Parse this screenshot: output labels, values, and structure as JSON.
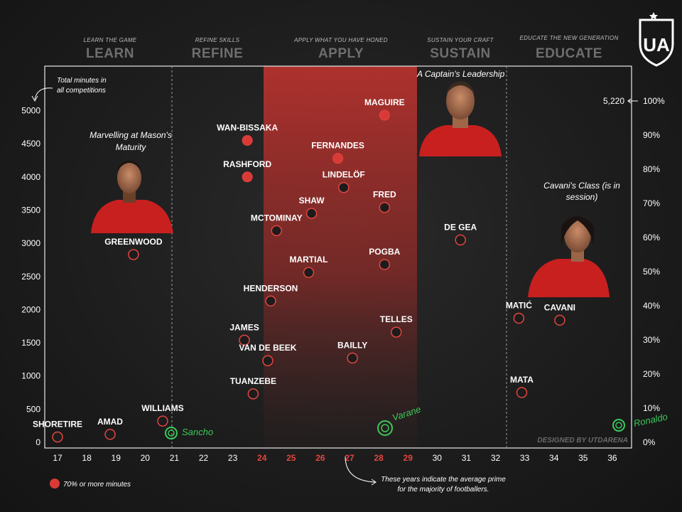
{
  "brand": {
    "logo_text": "UA",
    "credit": "DESIGNED BY UTDARENA"
  },
  "phases": [
    {
      "small": "LEARN THE GAME",
      "big": "LEARN"
    },
    {
      "small": "REFINE SKILLS",
      "big": "REFINE"
    },
    {
      "small": "APPLY WHAT YOU HAVE HONED",
      "big": "APPLY"
    },
    {
      "small": "SUSTAIN YOUR CRAFT",
      "big": "SUSTAIN"
    },
    {
      "small": "EDUCATE THE NEW GENERATION",
      "big": "EDUCATE"
    }
  ],
  "annotations": {
    "y_axis_note_line1": "Total minutes in",
    "y_axis_note_line2": "all competitions",
    "captain": "A Captain's Leadership",
    "mason_line1": "Marvelling at Mason's",
    "mason_line2": "Maturity",
    "cavani_line1": "Cavani's Class (is in",
    "cavani_line2": "session)",
    "prime_line1": "These years indicate the average prime",
    "prime_line2": "for the majority of footballers.",
    "max_minutes": "5,220",
    "legend": "70% or more minutes",
    "handwritten": [
      "Sancho",
      "Varane",
      "Ronaldo"
    ]
  },
  "colors": {
    "accent": "#e2453f",
    "apply_band": "#a8302c",
    "handwritten": "#3cc85a",
    "marker_fill": "#d93a36"
  },
  "chart_data": {
    "type": "scatter",
    "x_ticks": [
      17,
      18,
      19,
      20,
      21,
      22,
      23,
      24,
      25,
      26,
      27,
      28,
      29,
      30,
      31,
      32,
      33,
      34,
      35,
      36
    ],
    "x_highlight": [
      24,
      25,
      26,
      27,
      28,
      29
    ],
    "y_ticks": [
      0,
      500,
      1000,
      1500,
      2000,
      2500,
      3000,
      3500,
      4000,
      4500,
      5000
    ],
    "right_ticks": [
      "0%",
      "10%",
      "20%",
      "30%",
      "40%",
      "50%",
      "60%",
      "70%",
      "80%",
      "90%",
      "100%"
    ],
    "ylim": [
      0,
      5220
    ],
    "xlim": [
      16.6,
      36.4
    ],
    "points": [
      {
        "name": "SHORETIRE",
        "age": 17.0,
        "minutes": 80,
        "filled": false
      },
      {
        "name": "AMAD",
        "age": 18.8,
        "minutes": 120,
        "filled": false
      },
      {
        "name": "WILLIAMS",
        "age": 20.6,
        "minutes": 320,
        "filled": false
      },
      {
        "name": "GREENWOOD",
        "age": 19.6,
        "minutes": 2830,
        "filled": false
      },
      {
        "name": "WAN-BISSAKA",
        "age": 23.5,
        "minutes": 4550,
        "filled": true
      },
      {
        "name": "RASHFORD",
        "age": 23.5,
        "minutes": 4000,
        "filled": true
      },
      {
        "name": "MCTOMINAY",
        "age": 24.5,
        "minutes": 3190,
        "filled": false
      },
      {
        "name": "HENDERSON",
        "age": 24.3,
        "minutes": 2130,
        "filled": false
      },
      {
        "name": "JAMES",
        "age": 23.4,
        "minutes": 1540,
        "filled": false
      },
      {
        "name": "VAN DE BEEK",
        "age": 24.2,
        "minutes": 1230,
        "filled": false
      },
      {
        "name": "TUANZEBE",
        "age": 23.7,
        "minutes": 730,
        "filled": false
      },
      {
        "name": "SHAW",
        "age": 25.7,
        "minutes": 3450,
        "filled": false
      },
      {
        "name": "MARTIAL",
        "age": 25.6,
        "minutes": 2560,
        "filled": false
      },
      {
        "name": "FERNANDES",
        "age": 26.6,
        "minutes": 4280,
        "filled": true
      },
      {
        "name": "LINDELÖF",
        "age": 26.8,
        "minutes": 3840,
        "filled": false
      },
      {
        "name": "MAGUIRE",
        "age": 28.2,
        "minutes": 4930,
        "filled": true
      },
      {
        "name": "FRED",
        "age": 28.2,
        "minutes": 3540,
        "filled": false
      },
      {
        "name": "POGBA",
        "age": 28.2,
        "minutes": 2680,
        "filled": false
      },
      {
        "name": "BAILLY",
        "age": 27.1,
        "minutes": 1270,
        "filled": false
      },
      {
        "name": "TELLES",
        "age": 28.6,
        "minutes": 1660,
        "filled": false
      },
      {
        "name": "DE GEA",
        "age": 30.8,
        "minutes": 3050,
        "filled": false
      },
      {
        "name": "MATIĆ",
        "age": 32.8,
        "minutes": 1870,
        "filled": false
      },
      {
        "name": "CAVANI",
        "age": 34.2,
        "minutes": 1840,
        "filled": false
      },
      {
        "name": "MATA",
        "age": 32.9,
        "minutes": 750,
        "filled": false
      }
    ]
  }
}
